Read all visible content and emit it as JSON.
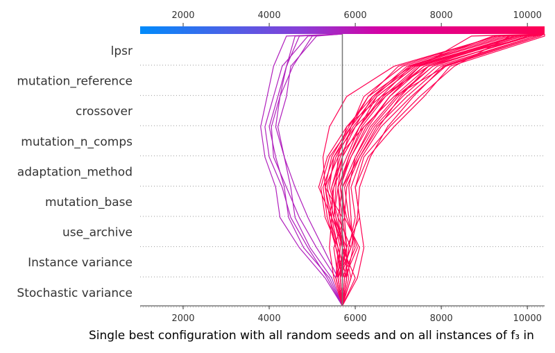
{
  "chart_data": {
    "type": "line",
    "title": "",
    "xlabel": "Single best configuration with all random seeds and on all instances of f₃ in",
    "ylabel": "",
    "xlim": [
      1000,
      10400
    ],
    "xticks": [
      2000,
      4000,
      6000,
      8000,
      10000
    ],
    "base_value": 5700,
    "features": [
      "lpsr",
      "mutation_reference",
      "crossover",
      "mutation_n_comps",
      "adaptation_method",
      "mutation_base",
      "use_archive",
      "Instance variance",
      "Stochastic variance"
    ],
    "colorbar": {
      "min": 1000,
      "max": 10400,
      "colors": [
        "#008bfb",
        "#8a3dd6",
        "#d600a3",
        "#ff0052"
      ]
    },
    "grid": "dotted horizontal",
    "series": [
      {
        "x": [
          5700,
          5350,
          4900,
          4500,
          4300,
          4000,
          3900,
          4100,
          4300,
          4900
        ],
        "final": 5700
      },
      {
        "x": [
          5700,
          5400,
          4800,
          4450,
          4350,
          4150,
          4000,
          4200,
          4400,
          4600
        ],
        "final": 5700
      },
      {
        "x": [
          5700,
          5450,
          4950,
          4600,
          4500,
          4350,
          4150,
          4250,
          4400,
          4700
        ],
        "final": 5700
      },
      {
        "x": [
          5700,
          5300,
          4700,
          4250,
          4150,
          3900,
          3800,
          3950,
          4100,
          4400
        ],
        "final": 5700
      },
      {
        "x": [
          5700,
          5550,
          5100,
          4700,
          4400,
          4100,
          4050,
          4250,
          4550,
          5000
        ],
        "final": 5700
      },
      {
        "x": [
          5700,
          5600,
          5250,
          4900,
          4600,
          4350,
          4200,
          4400,
          4500,
          5100
        ],
        "final": 5700
      },
      {
        "x": [
          5700,
          5500,
          5400,
          5450,
          5300,
          5250,
          5400,
          5800,
          6900,
          9300
        ],
        "final": 10400
      },
      {
        "x": [
          5700,
          5600,
          5800,
          5500,
          5550,
          5600,
          5800,
          6600,
          7700,
          10100
        ],
        "final": 10400
      },
      {
        "x": [
          5700,
          5800,
          5600,
          5300,
          5200,
          5400,
          5900,
          6300,
          7300,
          9800
        ],
        "final": 10400
      },
      {
        "x": [
          5700,
          5550,
          5650,
          5700,
          5300,
          5600,
          6200,
          6900,
          8100,
          10300
        ],
        "final": 10400
      },
      {
        "x": [
          5700,
          5900,
          5750,
          5450,
          5500,
          5800,
          6100,
          6500,
          7400,
          9700
        ],
        "final": 10400
      },
      {
        "x": [
          5700,
          6000,
          5700,
          5500,
          5600,
          5700,
          5900,
          6200,
          7100,
          9400
        ],
        "final": 10400
      },
      {
        "x": [
          5700,
          5650,
          5900,
          5600,
          5400,
          5500,
          6000,
          6700,
          7600,
          9900
        ],
        "final": 10400
      },
      {
        "x": [
          5700,
          5750,
          6050,
          5800,
          5650,
          5900,
          6300,
          6800,
          7500,
          8700
        ],
        "final": 10400
      },
      {
        "x": [
          5700,
          5600,
          5500,
          5750,
          5700,
          6100,
          6500,
          7200,
          8000,
          10200
        ],
        "final": 10400
      },
      {
        "x": [
          5700,
          5800,
          5950,
          5900,
          5850,
          6000,
          6400,
          7000,
          7800,
          10000
        ],
        "final": 10400
      },
      {
        "x": [
          5700,
          5550,
          5800,
          6100,
          6000,
          6200,
          6800,
          7500,
          8300,
          9600
        ],
        "final": 10400
      },
      {
        "x": [
          5700,
          5700,
          5550,
          5400,
          5500,
          5700,
          6100,
          6600,
          7300,
          9200
        ],
        "final": 10400
      },
      {
        "x": [
          5700,
          5900,
          6100,
          5750,
          5650,
          5850,
          6200,
          6900,
          7700,
          10100
        ],
        "final": 10400
      },
      {
        "x": [
          5700,
          5650,
          5700,
          5550,
          5450,
          5650,
          6000,
          6400,
          7200,
          9500
        ],
        "final": 10400
      },
      {
        "x": [
          5700,
          5750,
          5850,
          6000,
          5900,
          6150,
          6600,
          7300,
          8100,
          10300
        ],
        "final": 10400
      },
      {
        "x": [
          5700,
          5600,
          5650,
          5500,
          5350,
          5550,
          5950,
          6500,
          7400,
          9800
        ],
        "final": 10400
      },
      {
        "x": [
          5700,
          5800,
          5600,
          5400,
          5300,
          5450,
          5850,
          6300,
          7000,
          9300
        ],
        "final": 10400
      },
      {
        "x": [
          5700,
          6050,
          6200,
          6100,
          6000,
          6300,
          6900,
          7600,
          8200,
          10400
        ],
        "final": 10400
      },
      {
        "x": [
          5700,
          5550,
          5750,
          5650,
          5600,
          5900,
          6250,
          6800,
          7600,
          9900
        ],
        "final": 10400
      },
      {
        "x": [
          5700,
          5700,
          6000,
          5850,
          5750,
          6050,
          6450,
          7100,
          7900,
          10200
        ],
        "final": 10400
      },
      {
        "x": [
          5700,
          5850,
          5700,
          5600,
          5700,
          6000,
          6350,
          6950,
          7800,
          10000
        ],
        "final": 10400
      },
      {
        "x": [
          5700,
          5650,
          5800,
          5750,
          5800,
          6100,
          6550,
          7050,
          7700,
          9700
        ],
        "final": 10400
      },
      {
        "x": [
          5700,
          5600,
          5900,
          6050,
          6100,
          6350,
          6750,
          7350,
          8050,
          10300
        ],
        "final": 10400
      },
      {
        "x": [
          5700,
          5750,
          5550,
          5350,
          5250,
          5500,
          5900,
          6450,
          7250,
          9600
        ],
        "final": 10400
      },
      {
        "x": [
          5700,
          5800,
          5800,
          5700,
          5600,
          5850,
          6150,
          6700,
          7500,
          9900
        ],
        "final": 10400
      },
      {
        "x": [
          5700,
          5550,
          5600,
          5450,
          5150,
          5350,
          5800,
          6400,
          7350,
          10100
        ],
        "final": 10400
      },
      {
        "x": [
          5700,
          5700,
          5750,
          5550,
          5450,
          5700,
          6100,
          6650,
          7450,
          9800
        ],
        "final": 10400
      }
    ]
  }
}
